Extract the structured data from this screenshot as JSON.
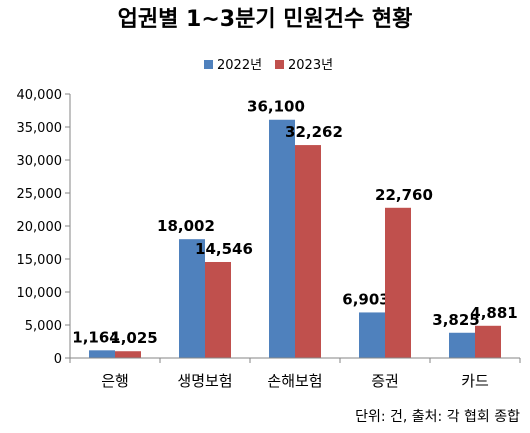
{
  "chart_data": {
    "type": "bar",
    "title": "업권별 1~3분기 민원건수 현황",
    "categories": [
      "은행",
      "생명보험",
      "손해보험",
      "증권",
      "카드"
    ],
    "series": [
      {
        "name": "2022년",
        "color": "#4F81BD",
        "values": [
          1164,
          18002,
          36100,
          6903,
          3825
        ],
        "labels": [
          "1,164",
          "18,002",
          "36,100",
          "6,903",
          "3,825"
        ]
      },
      {
        "name": "2023년",
        "color": "#C0504D",
        "values": [
          1025,
          14546,
          32262,
          22760,
          4881
        ],
        "labels": [
          "1,025",
          "14,546",
          "32,262",
          "22,760",
          "4,881"
        ]
      }
    ],
    "ylim": [
      0,
      40000
    ],
    "yticks": [
      0,
      5000,
      10000,
      15000,
      20000,
      25000,
      30000,
      35000,
      40000
    ],
    "ytick_labels": [
      "0",
      "5,000",
      "10,000",
      "15,000",
      "20,000",
      "25,000",
      "30,000",
      "35,000",
      "40,000"
    ],
    "legend_position": "top",
    "grid": false,
    "source_note": "단위: 건, 출처: 각 협회 종합"
  }
}
